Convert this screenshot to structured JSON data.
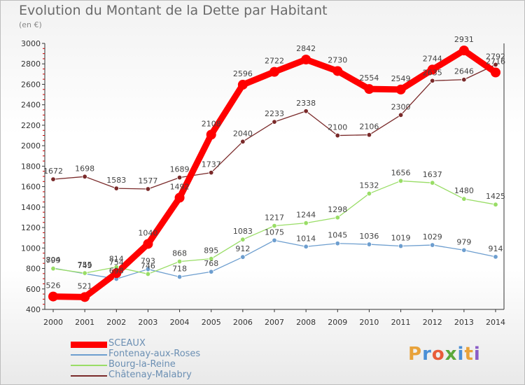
{
  "header": {
    "title": "Evolution du Montant de la Dette par Habitant",
    "subtitle": "(en €)"
  },
  "logo": {
    "text": "Proxiti",
    "letters": [
      "P",
      "r",
      "o",
      "x",
      "i",
      "t",
      "i"
    ]
  },
  "chart_data": {
    "type": "line",
    "title": "Evolution du Montant de la Dette par Habitant",
    "subtitle": "(en €)",
    "xlabel": "",
    "ylabel": "",
    "x": [
      "2000",
      "2001",
      "2002",
      "2003",
      "2004",
      "2005",
      "2006",
      "2007",
      "2008",
      "2009",
      "2010",
      "2011",
      "2012",
      "2013",
      "2014"
    ],
    "ylim": [
      400,
      3000
    ],
    "yticks": [
      400,
      600,
      800,
      1000,
      1200,
      1400,
      1600,
      1800,
      2000,
      2200,
      2400,
      2600,
      2800,
      3000
    ],
    "grid": false,
    "legend_position": "bottom-left",
    "series": [
      {
        "name": "SCEAUX",
        "color": "#ff0000",
        "values": [
          526,
          521,
          754,
          1040,
          1492,
          2108,
          2596,
          2722,
          2842,
          2730,
          2554,
          2549,
          2744,
          2931,
          2716
        ],
        "labels": [
          "526",
          "521",
          "754",
          "1040",
          "1492",
          "2108",
          "2596",
          "2722",
          "2842",
          "2730",
          "2554",
          "2549",
          "2744",
          "2931",
          "2716"
        ]
      },
      {
        "name": "Fontenay-aux-Roses",
        "color": "#6d9ecf",
        "values": [
          804,
          749,
          698,
          793,
          718,
          768,
          912,
          1075,
          1014,
          1045,
          1036,
          1019,
          1029,
          979,
          914
        ],
        "labels": [
          "804",
          "749",
          "698",
          "793",
          "718",
          "768",
          "912",
          "1075",
          "1014",
          "1045",
          "1036",
          "1019",
          "1029",
          "979",
          "914"
        ]
      },
      {
        "name": "Bourg-la-Reine",
        "color": "#99dd66",
        "values": [
          799,
          755,
          814,
          746,
          868,
          895,
          1083,
          1217,
          1244,
          1298,
          1532,
          1656,
          1637,
          1480,
          1425
        ],
        "labels": [
          "799",
          "755",
          "814",
          "746",
          "868",
          "895",
          "1083",
          "1217",
          "1244",
          "1298",
          "1532",
          "1656",
          "1637",
          "1480",
          "1425"
        ]
      },
      {
        "name": "Châtenay-Malabry",
        "color": "#7a2a2a",
        "values": [
          1672,
          1698,
          1583,
          1577,
          1689,
          1737,
          2040,
          2233,
          2338,
          2100,
          2106,
          2300,
          2635,
          2646,
          2792
        ],
        "labels": [
          "1672",
          "1698",
          "1583",
          "1577",
          "1689",
          "1737",
          "2040",
          "2233",
          "2338",
          "2100",
          "2106",
          "2300",
          "2635",
          "2646",
          "2792"
        ]
      }
    ]
  }
}
